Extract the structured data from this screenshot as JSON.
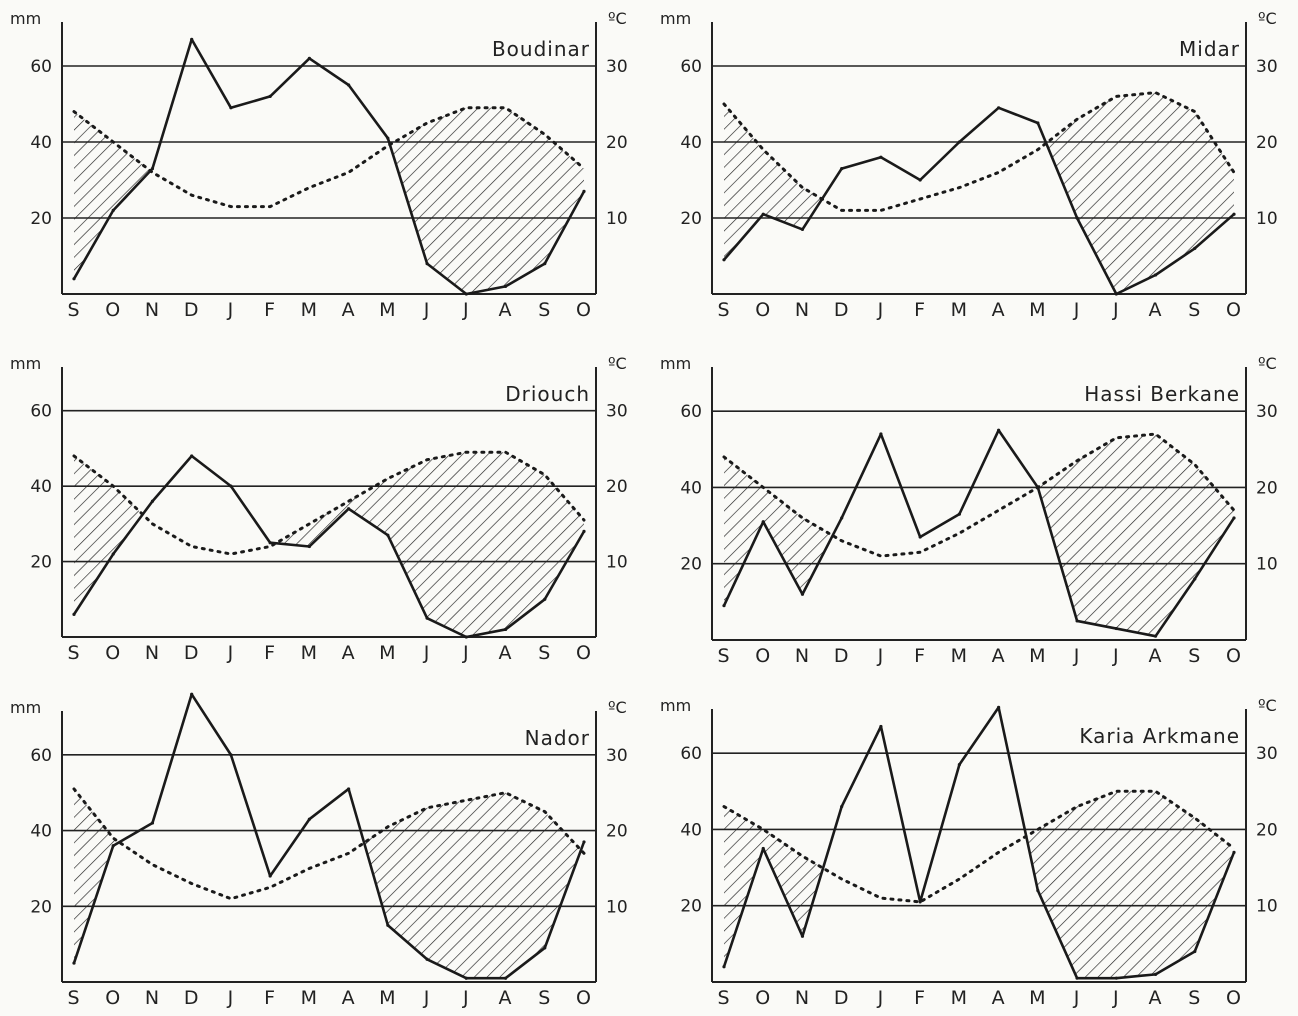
{
  "chart_data": [
    {
      "type": "line",
      "title": "Boudinar",
      "xlabel": "",
      "y_left_label": "mm",
      "y_right_label": "ºC",
      "categories": [
        "S",
        "O",
        "N",
        "D",
        "J",
        "F",
        "M",
        "A",
        "M",
        "J",
        "J",
        "A",
        "S",
        "O"
      ],
      "ylim": [
        0,
        70
      ],
      "y2lim": [
        0,
        35
      ],
      "y_left_ticks": [
        "20",
        "40",
        "60"
      ],
      "y_right_ticks": [
        "10",
        "20",
        "30"
      ],
      "gridlines": [
        20,
        40,
        60
      ],
      "series": [
        {
          "values": [
            4,
            22,
            33,
            67,
            49,
            52,
            62,
            55,
            41,
            8,
            0,
            2,
            8,
            27
          ]
        },
        {
          "values": [
            24,
            20,
            16,
            13,
            11.5,
            11.5,
            14,
            16,
            19.5,
            22.5,
            24.5,
            24.5,
            21,
            16.5
          ]
        }
      ],
      "shading": "dry season (temperature above precipitation), hatched"
    },
    {
      "type": "line",
      "title": "Midar",
      "xlabel": "",
      "y_left_label": "mm",
      "y_right_label": "ºC",
      "categories": [
        "S",
        "O",
        "N",
        "D",
        "J",
        "F",
        "M",
        "A",
        "M",
        "J",
        "J",
        "A",
        "S",
        "O"
      ],
      "ylim": [
        0,
        70
      ],
      "y2lim": [
        0,
        35
      ],
      "y_left_ticks": [
        "20",
        "40",
        "60"
      ],
      "y_right_ticks": [
        "10",
        "20",
        "30"
      ],
      "gridlines": [
        20,
        40,
        60
      ],
      "series": [
        {
          "values": [
            9,
            21,
            17,
            33,
            36,
            30,
            40,
            49,
            45,
            20,
            0,
            5,
            12,
            21
          ]
        },
        {
          "values": [
            25,
            19,
            14,
            11,
            11,
            12.5,
            14,
            16,
            19,
            23,
            26,
            26.5,
            24,
            16
          ]
        }
      ],
      "shading": "dry season (temperature above precipitation), hatched"
    },
    {
      "type": "line",
      "title": "Driouch",
      "xlabel": "",
      "y_left_label": "mm",
      "y_right_label": "ºC",
      "categories": [
        "S",
        "O",
        "N",
        "D",
        "J",
        "F",
        "M",
        "A",
        "M",
        "J",
        "J",
        "A",
        "S",
        "O"
      ],
      "ylim": [
        0,
        70
      ],
      "y2lim": [
        0,
        35
      ],
      "y_left_ticks": [
        "20",
        "40",
        "60"
      ],
      "y_right_ticks": [
        "10",
        "20",
        "30"
      ],
      "gridlines": [
        20,
        40,
        60
      ],
      "series": [
        {
          "values": [
            6,
            22,
            36,
            48,
            40,
            25,
            24,
            34,
            27,
            5,
            0,
            2,
            10,
            28
          ]
        },
        {
          "values": [
            24,
            20,
            15,
            12,
            11,
            12,
            15,
            18,
            21,
            23.5,
            24.5,
            24.5,
            21.5,
            15.5
          ]
        }
      ],
      "shading": "dry season (temperature above precipitation), hatched"
    },
    {
      "type": "line",
      "title": "Hassi Berkane",
      "xlabel": "",
      "y_left_label": "mm",
      "y_right_label": "ºC",
      "categories": [
        "S",
        "O",
        "N",
        "D",
        "J",
        "F",
        "M",
        "A",
        "M",
        "J",
        "J",
        "A",
        "S",
        "O"
      ],
      "ylim": [
        0,
        70
      ],
      "y2lim": [
        0,
        35
      ],
      "y_left_ticks": [
        "20",
        "40",
        "60"
      ],
      "y_right_ticks": [
        "10",
        "20",
        "30"
      ],
      "gridlines": [
        20,
        40,
        60
      ],
      "series": [
        {
          "values": [
            9,
            31,
            12,
            32,
            54,
            27,
            33,
            55,
            40,
            5,
            3,
            1,
            16,
            32
          ]
        },
        {
          "values": [
            24,
            20,
            16,
            13,
            11,
            11.5,
            14,
            17,
            20,
            23.5,
            26.5,
            27,
            23,
            17
          ]
        }
      ],
      "shading": "dry season (temperature above precipitation), hatched"
    },
    {
      "type": "line",
      "title": "Nador",
      "xlabel": "",
      "y_left_label": "mm",
      "y_right_label": "ºC",
      "categories": [
        "S",
        "O",
        "N",
        "D",
        "J",
        "F",
        "M",
        "A",
        "M",
        "J",
        "J",
        "A",
        "S",
        "O"
      ],
      "ylim": [
        0,
        70
      ],
      "y2lim": [
        0,
        35
      ],
      "y_left_ticks": [
        "20",
        "40",
        "60"
      ],
      "y_right_ticks": [
        "10",
        "20",
        "30"
      ],
      "gridlines": [
        20,
        40,
        60
      ],
      "series": [
        {
          "values": [
            5,
            36,
            42,
            76,
            60,
            28,
            43,
            51,
            15,
            6,
            1,
            1,
            9,
            37
          ]
        },
        {
          "values": [
            25.5,
            19,
            15.5,
            13,
            11,
            12.5,
            15,
            17,
            20.5,
            23,
            24,
            25,
            22.5,
            17
          ]
        }
      ],
      "shading": "dry season (temperature above precipitation), hatched"
    },
    {
      "type": "line",
      "title": "Karia Arkmane",
      "xlabel": "",
      "y_left_label": "mm",
      "y_right_label": "ºC",
      "categories": [
        "S",
        "O",
        "N",
        "D",
        "J",
        "F",
        "M",
        "A",
        "M",
        "J",
        "J",
        "A",
        "S",
        "O"
      ],
      "ylim": [
        0,
        70
      ],
      "y2lim": [
        0,
        35
      ],
      "y_left_ticks": [
        "20",
        "40",
        "60"
      ],
      "y_right_ticks": [
        "10",
        "20",
        "30"
      ],
      "gridlines": [
        20,
        40,
        60
      ],
      "series": [
        {
          "values": [
            4,
            35,
            12,
            46,
            67,
            21,
            57,
            72,
            24,
            1,
            1,
            2,
            8,
            34
          ]
        },
        {
          "values": [
            23,
            20,
            16.5,
            13.5,
            11,
            10.5,
            13.5,
            17,
            20,
            23,
            25,
            25,
            21.5,
            17.5
          ]
        }
      ],
      "shading": "dry season (temperature above precipitation), hatched"
    }
  ]
}
